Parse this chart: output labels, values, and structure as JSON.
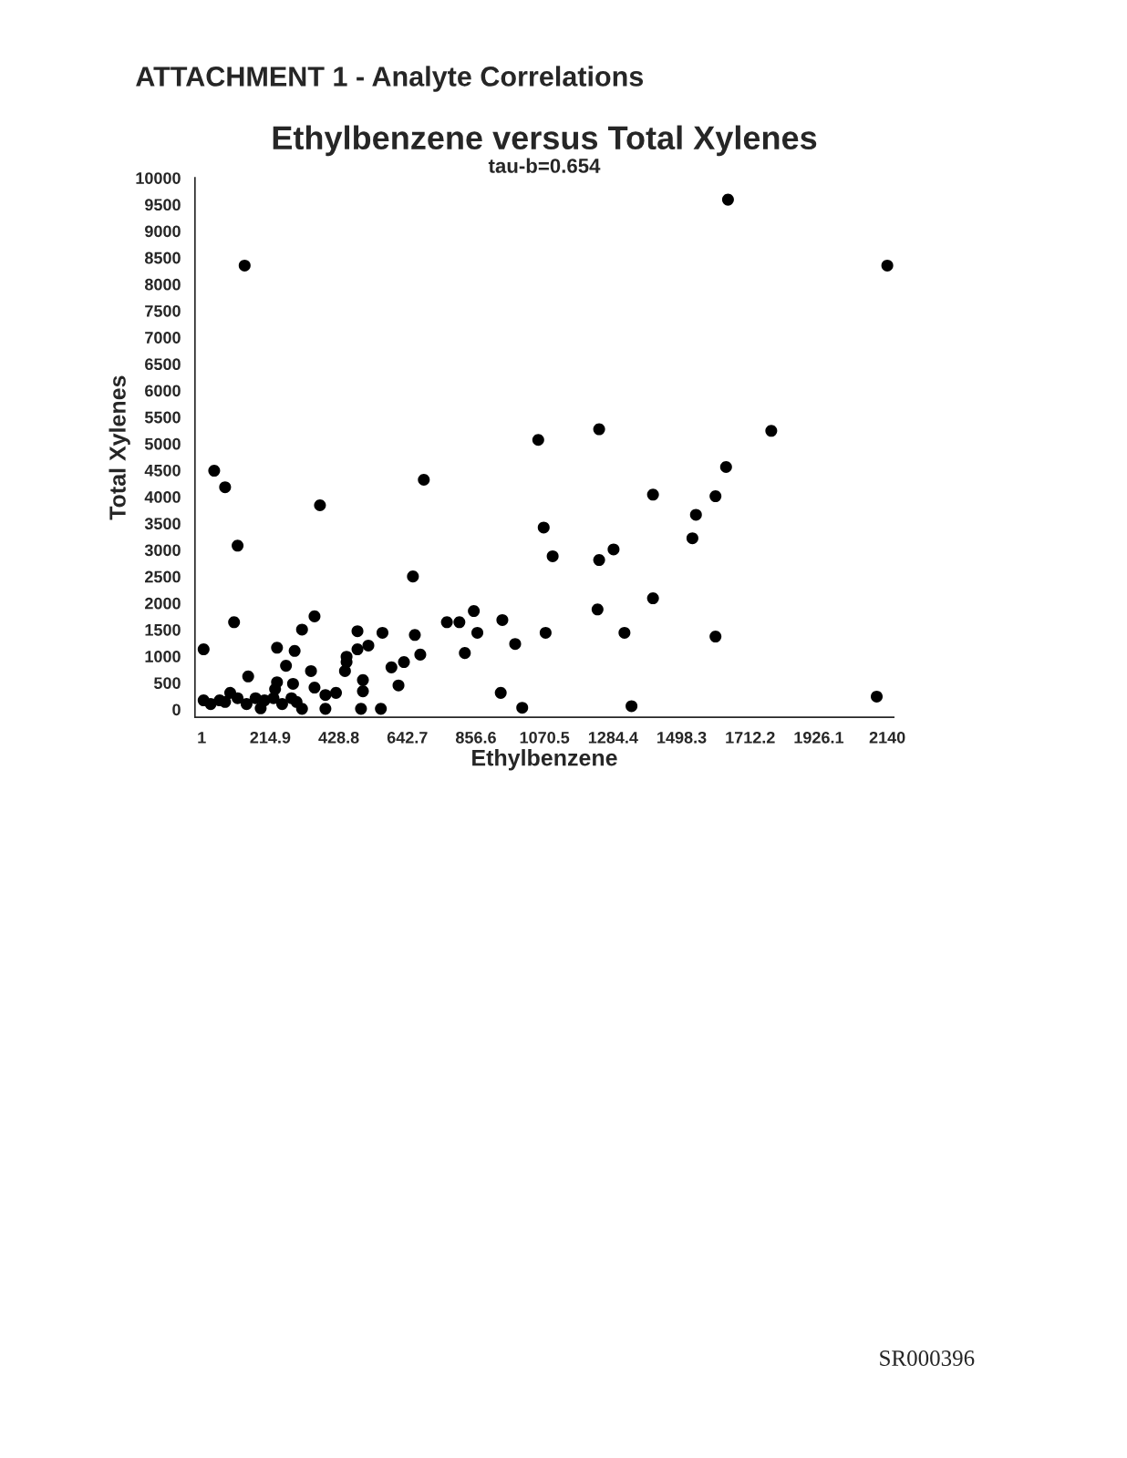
{
  "chart_data": {
    "type": "scatter",
    "title": "Ethylbenzene versus Total Xylenes",
    "subtitle": "tau-b=0.654",
    "xlabel": "Ethylbenzene",
    "ylabel": "Total Xylenes",
    "annotations": [
      "ATTACHMENT 1 - Analyte Correlations",
      "SR000396"
    ],
    "marker": "circle",
    "grid": false,
    "legend": false,
    "xlim": [
      -20,
      2160
    ],
    "ylim": [
      -150,
      10000
    ],
    "xticks": [
      1,
      214.9,
      428.8,
      642.7,
      856.6,
      1070.5,
      1284.4,
      1498.3,
      1712.2,
      1926.1,
      2140
    ],
    "yticks": [
      0,
      500,
      1000,
      1500,
      2000,
      2500,
      3000,
      3500,
      4000,
      4500,
      5000,
      5500,
      6000,
      6500,
      7000,
      7500,
      8000,
      8500,
      9000,
      9500,
      10000
    ],
    "series": [
      {
        "color": "#000000",
        "x": [
          135,
          1643,
          2140,
          40,
          74,
          113,
          370,
          694,
          660,
          1051,
          1241,
          1778,
          1637,
          1409,
          1604,
          1543,
          1532,
          1068,
          1096,
          1286,
          1241,
          1409,
          1074,
          1320,
          1236,
          1604,
          1342,
          2107,
          934,
          1001,
          102,
          314,
          353,
          487,
          565,
          666,
          766,
          805,
          850,
          861,
          822,
          683,
          521,
          487,
          453,
          291,
          236,
          7,
          632,
          593,
          615,
          453,
          448,
          342,
          264,
          146,
          236,
          286,
          230,
          353,
          387,
          420,
          504,
          504,
          90,
          387,
          498,
          560,
          314,
          7,
          29,
          57,
          74,
          113,
          141,
          169,
          197,
          225,
          252,
          281,
          297,
          185,
          939,
          979
        ],
        "values": [
          8350,
          9590,
          8350,
          4490,
          4180,
          3080,
          3840,
          4320,
          2500,
          5070,
          5270,
          5240,
          4560,
          4040,
          4010,
          3660,
          3220,
          3420,
          2880,
          3010,
          2810,
          2090,
          1440,
          1440,
          1880,
          1370,
          60,
          240,
          310,
          30,
          1640,
          1500,
          1750,
          1470,
          1440,
          1400,
          1640,
          1640,
          1850,
          1440,
          1060,
          1030,
          1200,
          1130,
          990,
          1100,
          1160,
          1130,
          890,
          790,
          450,
          890,
          720,
          720,
          820,
          620,
          510,
          480,
          380,
          410,
          270,
          310,
          550,
          340,
          310,
          10,
          10,
          10,
          10,
          170,
          100,
          170,
          140,
          210,
          100,
          210,
          170,
          210,
          100,
          210,
          140,
          20,
          1680,
          1230
        ]
      }
    ]
  }
}
